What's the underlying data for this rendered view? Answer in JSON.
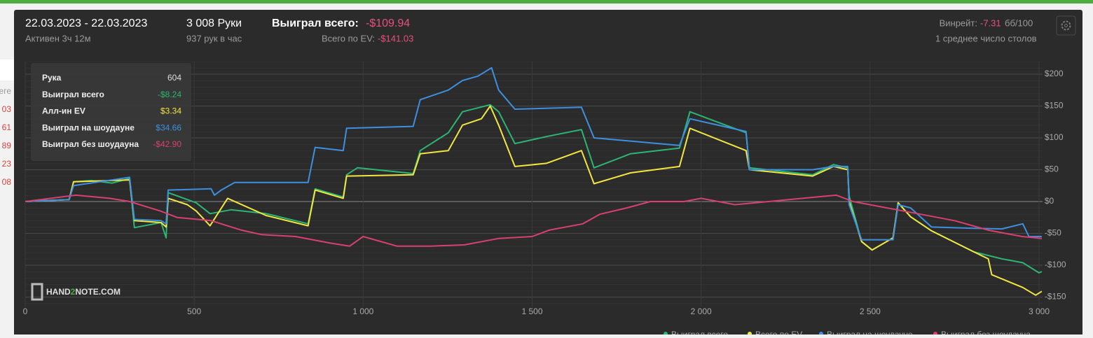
{
  "header": {
    "dates": "22.03.2023 - 22.03.2023",
    "active": "Активен 3ч 12м",
    "hands": "3 008 Руки",
    "hands_per_hour": "937 рук в час",
    "won_label": "Выиграл всего:",
    "won_value": "-$109.94",
    "ev_label": "Всего по EV:",
    "ev_value": "-$141.03",
    "winrate_label": "Винрейт:",
    "winrate_value": "-7.31",
    "winrate_unit": "бб/100",
    "tables": "1 среднее число столов"
  },
  "side": [
    "еге",
    "03",
    "61",
    "89",
    "23",
    "08"
  ],
  "tooltip": {
    "rows": [
      [
        "Рука",
        "604"
      ],
      [
        "Выиграл всего",
        "-$8.24"
      ],
      [
        "Алл-ин EV",
        "$3.34"
      ],
      [
        "Выиграл на шоудауне",
        "$34.66"
      ],
      [
        "Выиграл без шоудауна",
        "-$42.90"
      ]
    ]
  },
  "logo": {
    "prefix": "HAND",
    "mid": "2",
    "suffix": "NOTE.COM"
  },
  "chart_data": {
    "type": "line",
    "xlim": [
      0,
      3010
    ],
    "ylim": [
      -165,
      220
    ],
    "xticks": [
      0,
      500,
      {
        "value": 1000,
        "label": "1 000"
      },
      {
        "value": 1500,
        "label": "1 500"
      },
      {
        "value": 2000,
        "label": "2 000"
      },
      {
        "value": 2500,
        "label": "2 500"
      },
      {
        "value": 3000,
        "label": "3 000"
      }
    ],
    "yticks": [
      {
        "value": 200,
        "label": "$200"
      },
      {
        "value": 150,
        "label": "$150"
      },
      {
        "value": 100,
        "label": "$100"
      },
      {
        "value": 50,
        "label": "$50"
      },
      {
        "value": 0,
        "label": "$0"
      },
      {
        "value": -50,
        "label": "-$50"
      },
      {
        "value": -100,
        "label": "-$100"
      },
      {
        "value": -150,
        "label": "-$150"
      }
    ],
    "grid": true,
    "series": [
      {
        "name": "Выиграл всего",
        "color": "#2bb673",
        "x": [
          0,
          130,
          143,
          195,
          257,
          309,
          323,
          402,
          417,
          423,
          506,
          547,
          609,
          713,
          837,
          858,
          941,
          951,
          983,
          1148,
          1169,
          1252,
          1294,
          1376,
          1401,
          1449,
          1542,
          1646,
          1683,
          1791,
          1936,
          1967,
          2133,
          2143,
          2330,
          2392,
          2434,
          2438,
          2475,
          2506,
          2568,
          2583,
          2620,
          2682,
          2807,
          2890,
          2952,
          3000,
          3008
        ],
        "values": [
          0,
          3,
          31,
          33,
          29,
          36,
          -41,
          -33,
          -57,
          14,
          -2,
          -19,
          -13,
          -19,
          -35,
          20,
          7,
          42,
          53,
          44,
          80,
          108,
          141,
          152,
          141,
          91,
          102,
          113,
          53,
          75,
          84,
          141,
          108,
          53,
          42,
          58,
          53,
          9,
          -63,
          -76,
          -57,
          -2,
          -24,
          -46,
          -79,
          -90,
          -96,
          -112,
          -109.94
        ]
      },
      {
        "name": "Всего по EV",
        "color": "#f2e640",
        "x": [
          0,
          130,
          143,
          309,
          323,
          402,
          417,
          423,
          480,
          506,
          547,
          599,
          713,
          837,
          858,
          941,
          951,
          1148,
          1169,
          1252,
          1294,
          1350,
          1376,
          1401,
          1449,
          1542,
          1646,
          1683,
          1791,
          1936,
          1967,
          2133,
          2143,
          2330,
          2392,
          2434,
          2438,
          2475,
          2506,
          2568,
          2583,
          2620,
          2682,
          2807,
          2850,
          2860,
          2952,
          2990,
          3008
        ],
        "values": [
          0,
          3,
          31,
          34,
          -30,
          -33,
          -40,
          5,
          -5,
          -15,
          -38,
          5,
          -22,
          -38,
          18,
          5,
          40,
          42,
          75,
          80,
          120,
          130,
          150,
          120,
          55,
          60,
          80,
          28,
          45,
          55,
          115,
          80,
          50,
          40,
          55,
          50,
          0,
          -63,
          -76,
          -57,
          -2,
          -24,
          -46,
          -79,
          -90,
          -115,
          -135,
          -147,
          -141.03
        ]
      },
      {
        "name": "Выиграл на шоудауне",
        "color": "#3d8fe0",
        "x": [
          0,
          130,
          143,
          309,
          323,
          402,
          417,
          423,
          550,
          560,
          580,
          620,
          837,
          858,
          941,
          951,
          1148,
          1169,
          1252,
          1294,
          1340,
          1380,
          1401,
          1449,
          1646,
          1683,
          1936,
          1967,
          2133,
          2143,
          2330,
          2392,
          2434,
          2438,
          2475,
          2568,
          2583,
          2620,
          2682,
          2807,
          2890,
          2952,
          2970,
          3008
        ],
        "values": [
          0,
          3,
          25,
          38,
          -28,
          -30,
          -35,
          18,
          20,
          10,
          18,
          30,
          30,
          85,
          80,
          115,
          118,
          160,
          175,
          190,
          197,
          210,
          175,
          145,
          148,
          100,
          88,
          130,
          110,
          50,
          50,
          55,
          55,
          -5,
          -60,
          -60,
          -5,
          -10,
          -40,
          -42,
          -43,
          -35,
          -55,
          -55
        ]
      },
      {
        "name": "Выиграл без шоудауна",
        "color": "#d8416f",
        "x": [
          0,
          150,
          250,
          309,
          400,
          450,
          550,
          640,
          700,
          800,
          900,
          960,
          1000,
          1100,
          1200,
          1300,
          1400,
          1500,
          1550,
          1650,
          1700,
          1780,
          1850,
          1950,
          2000,
          2100,
          2200,
          2300,
          2400,
          2450,
          2550,
          2650,
          2750,
          2850,
          2950,
          3008
        ],
        "values": [
          0,
          10,
          5,
          0,
          -15,
          -25,
          -30,
          -45,
          -52,
          -55,
          -65,
          -70,
          -55,
          -70,
          -70,
          -68,
          -58,
          -55,
          -45,
          -35,
          -20,
          -10,
          0,
          0,
          5,
          -5,
          0,
          5,
          10,
          0,
          -10,
          -20,
          -30,
          -45,
          -55,
          -58
        ]
      }
    ]
  }
}
